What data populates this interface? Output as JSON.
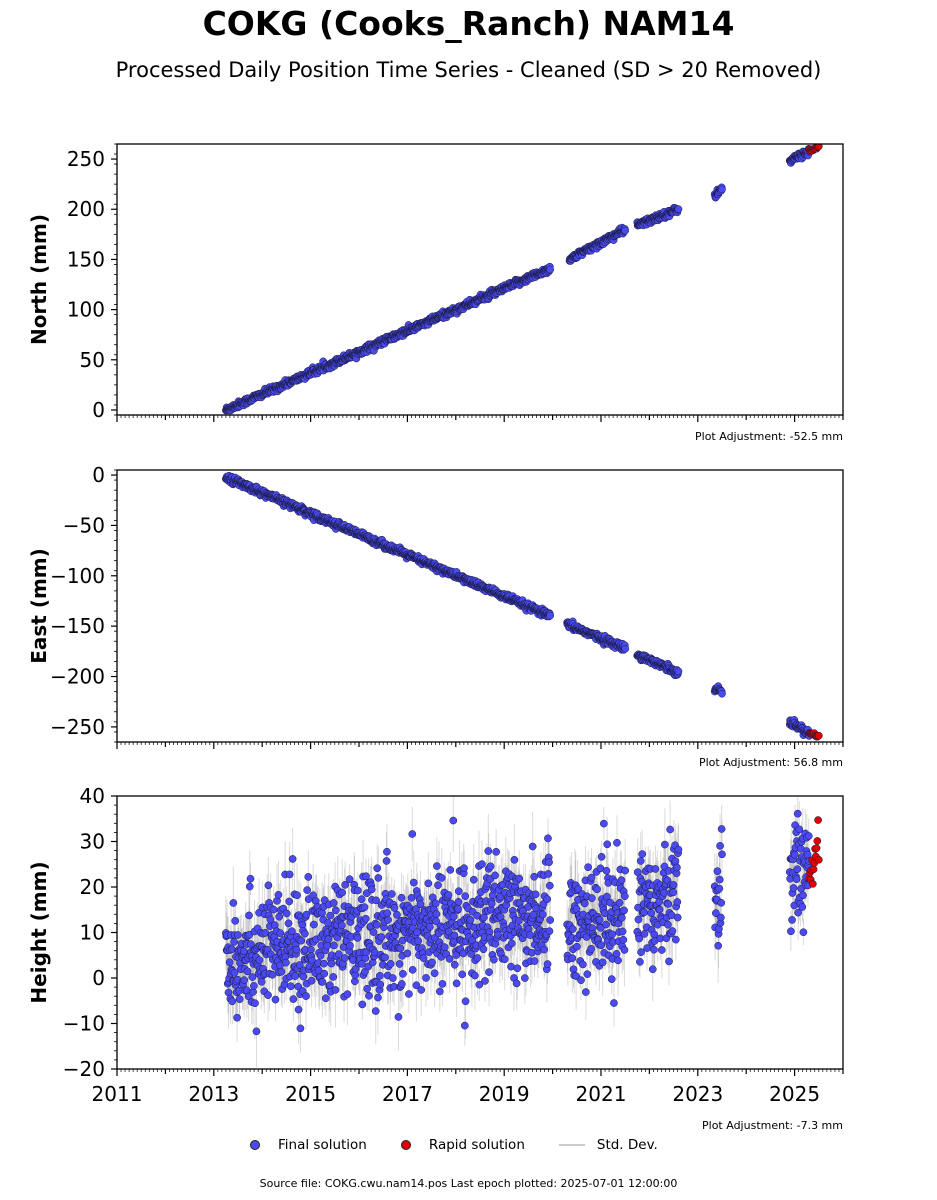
{
  "title": "COKG (Cooks_Ranch) NAM14",
  "subtitle": "Processed Daily Position Time Series - Cleaned (SD > 20 Removed)",
  "legend": {
    "final": "Final solution",
    "rapid": "Rapid solution",
    "std": "Std. Dev."
  },
  "source_text": "Source file: COKG.cwu.nam14.pos  Last epoch plotted: 2025-07-01 12:00:00",
  "colors": {
    "final": "#4a4af0",
    "rapid": "#e00000",
    "edge": "#1a1a40",
    "std": "#999999"
  },
  "chart_data": [
    {
      "type": "scatter",
      "component": "north",
      "ylabel": "North (mm)",
      "ylim": [
        -5,
        265
      ],
      "xlim": [
        2011.0,
        2026.0
      ],
      "yticks": [
        0,
        50,
        100,
        150,
        200,
        250
      ],
      "xtick_labels_shown": false,
      "adjustment_label": "Plot Adjustment: -52.5 mm",
      "segments": [
        {
          "x0": 2013.25,
          "x1": 2019.95,
          "y0": 0,
          "y1": 141,
          "sd": 2.5
        },
        {
          "x0": 2020.35,
          "x1": 2021.5,
          "y0": 150,
          "y1": 180,
          "sd": 2.5
        },
        {
          "x0": 2021.75,
          "x1": 2022.6,
          "y0": 184,
          "y1": 200,
          "sd": 2.5
        },
        {
          "x0": 2023.35,
          "x1": 2023.5,
          "y0": 214,
          "y1": 220,
          "sd": 2.5
        },
        {
          "x0": 2024.9,
          "x1": 2025.3,
          "y0": 248,
          "y1": 258,
          "sd": 2.5
        }
      ],
      "rapid_segment": {
        "x0": 2025.3,
        "x1": 2025.5,
        "y0": 258,
        "y1": 262
      }
    },
    {
      "type": "scatter",
      "component": "east",
      "ylabel": "East (mm)",
      "ylim": [
        -265,
        5
      ],
      "xlim": [
        2011.0,
        2026.0
      ],
      "yticks": [
        0,
        -50,
        -100,
        -150,
        -200,
        -250
      ],
      "ytick_labels": [
        "0",
        "−50",
        "−100",
        "−150",
        "−200",
        "−250"
      ],
      "xtick_labels_shown": false,
      "adjustment_label": "Plot Adjustment: 56.8 mm",
      "segments": [
        {
          "x0": 2013.25,
          "x1": 2019.95,
          "y0": -2,
          "y1": -140,
          "sd": 2.5
        },
        {
          "x0": 2020.3,
          "x1": 2021.5,
          "y0": -148,
          "y1": -172,
          "sd": 2.5
        },
        {
          "x0": 2021.75,
          "x1": 2022.6,
          "y0": -178,
          "y1": -196,
          "sd": 2.5
        },
        {
          "x0": 2023.35,
          "x1": 2023.5,
          "y0": -212,
          "y1": -215,
          "sd": 2.5
        },
        {
          "x0": 2024.9,
          "x1": 2025.3,
          "y0": -245,
          "y1": -256,
          "sd": 2.5
        }
      ],
      "rapid_segment": {
        "x0": 2025.3,
        "x1": 2025.5,
        "y0": -256,
        "y1": -259
      }
    },
    {
      "type": "scatter",
      "component": "height",
      "ylabel": "Height (mm)",
      "ylim": [
        -20,
        40
      ],
      "xlim": [
        2011.0,
        2026.0
      ],
      "yticks": [
        -20,
        -10,
        0,
        10,
        20,
        30,
        40
      ],
      "ytick_labels": [
        "−20",
        "−10",
        "0",
        "10",
        "20",
        "30",
        "40"
      ],
      "xticks": [
        2011,
        2013,
        2015,
        2017,
        2019,
        2021,
        2023,
        2025
      ],
      "xtick_labels": [
        "2011",
        "2013",
        "2015",
        "2017",
        "2019",
        "2021",
        "2023",
        "2025"
      ],
      "adjustment_label": "Plot Adjustment: -7.3 mm",
      "segments": [
        {
          "x0": 2013.25,
          "x1": 2019.95,
          "y0": 5,
          "y1": 14,
          "sd": 5.5
        },
        {
          "x0": 2020.3,
          "x1": 2021.5,
          "y0": 12,
          "y1": 14,
          "sd": 5.5
        },
        {
          "x0": 2021.75,
          "x1": 2022.6,
          "y0": 16,
          "y1": 20,
          "sd": 5.5
        },
        {
          "x0": 2023.35,
          "x1": 2023.5,
          "y0": 18,
          "y1": 22,
          "sd": 5.5
        },
        {
          "x0": 2024.9,
          "x1": 2025.3,
          "y0": 22,
          "y1": 26,
          "sd": 4.5
        }
      ],
      "rapid_segment": {
        "x0": 2025.3,
        "x1": 2025.5,
        "y0": 22,
        "y1": 30
      }
    }
  ]
}
